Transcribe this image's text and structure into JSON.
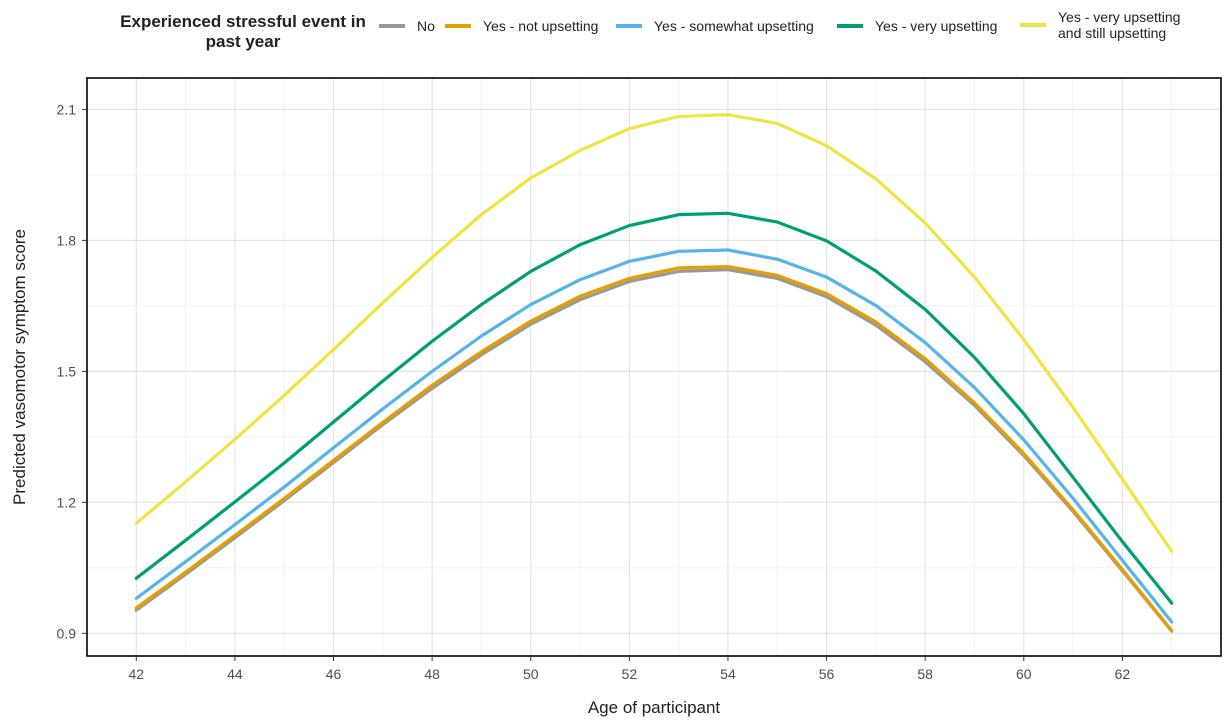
{
  "chart_data": {
    "type": "line",
    "title": "",
    "xlabel": "Age of participant",
    "ylabel": "Predicted vasomotor symptom score",
    "xlim": [
      41,
      64
    ],
    "ylim": [
      0.848,
      2.172
    ],
    "x_ticks": [
      "42",
      "44",
      "46",
      "48",
      "50",
      "52",
      "54",
      "56",
      "58",
      "60",
      "62"
    ],
    "y_ticks": [
      "0.9",
      "1.2",
      "1.5",
      "1.8",
      "2.1"
    ],
    "grid": true,
    "legend_title": "Experienced stressful event\nin past year",
    "legend_position": "top",
    "x": [
      42,
      43,
      44,
      45,
      46,
      47,
      48,
      49,
      50,
      51,
      52,
      53,
      54,
      55,
      56,
      57,
      58,
      59,
      60,
      61,
      62,
      63
    ],
    "series": [
      {
        "name": "No",
        "color": "#999999",
        "values": [
          0.953,
          1.035,
          1.119,
          1.204,
          1.291,
          1.378,
          1.461,
          1.538,
          1.608,
          1.664,
          1.706,
          1.729,
          1.733,
          1.713,
          1.671,
          1.606,
          1.522,
          1.422,
          1.307,
          1.179,
          1.043,
          0.905
        ]
      },
      {
        "name": "Yes - not upsetting",
        "color": "#E69F00",
        "values": [
          0.958,
          1.04,
          1.124,
          1.209,
          1.296,
          1.383,
          1.468,
          1.545,
          1.615,
          1.672,
          1.713,
          1.737,
          1.74,
          1.72,
          1.678,
          1.613,
          1.529,
          1.428,
          1.312,
          1.183,
          1.046,
          0.906
        ]
      },
      {
        "name": "Yes - somewhat upsetting",
        "color": "#56B4E9",
        "values": [
          0.98,
          1.064,
          1.149,
          1.235,
          1.325,
          1.414,
          1.5,
          1.581,
          1.653,
          1.71,
          1.752,
          1.775,
          1.778,
          1.757,
          1.716,
          1.651,
          1.566,
          1.463,
          1.343,
          1.209,
          1.067,
          0.926
        ]
      },
      {
        "name": "Yes - very upsetting",
        "color": "#009E73",
        "values": [
          1.026,
          1.113,
          1.201,
          1.29,
          1.384,
          1.478,
          1.569,
          1.653,
          1.729,
          1.79,
          1.834,
          1.859,
          1.862,
          1.842,
          1.799,
          1.73,
          1.642,
          1.532,
          1.403,
          1.257,
          1.11,
          0.969
        ]
      },
      {
        "name": "Yes - very upsetting\nand still upsetting",
        "color": "#F0E442",
        "values": [
          1.152,
          1.247,
          1.344,
          1.445,
          1.55,
          1.657,
          1.761,
          1.859,
          1.943,
          2.006,
          2.056,
          2.084,
          2.088,
          2.068,
          2.017,
          1.941,
          1.84,
          1.716,
          1.573,
          1.417,
          1.253,
          1.088
        ]
      }
    ]
  }
}
